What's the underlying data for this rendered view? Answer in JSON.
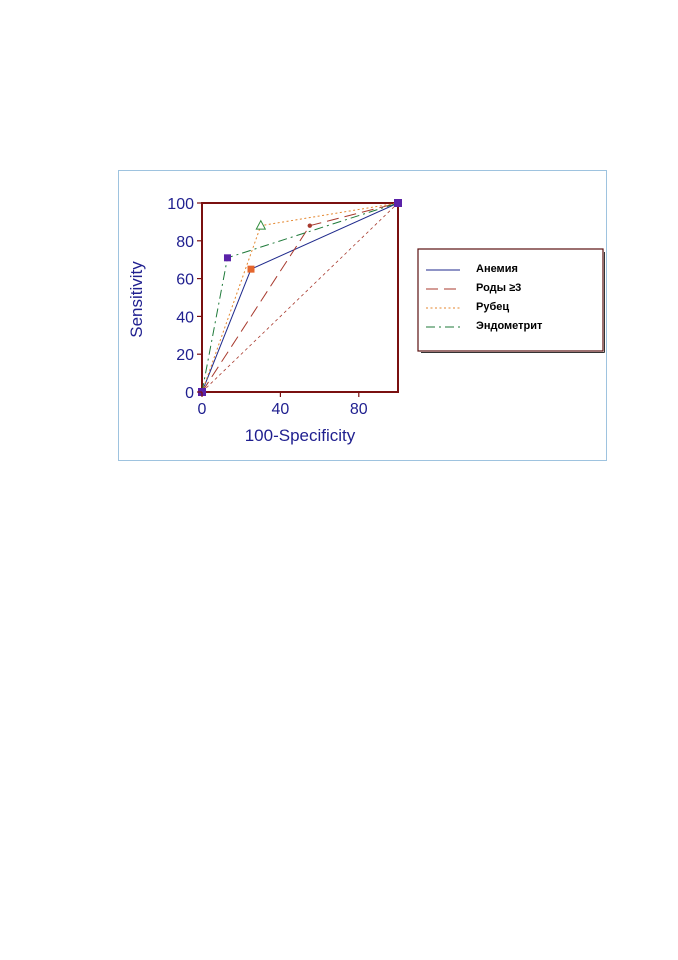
{
  "chart_data": {
    "type": "line",
    "xlabel": "100-Specificity",
    "ylabel": "Sensitivity",
    "xlim": [
      0,
      100
    ],
    "ylim": [
      0,
      100
    ],
    "xticks": [
      0,
      40,
      80
    ],
    "yticks": [
      0,
      20,
      40,
      60,
      80,
      100
    ],
    "grid": false,
    "legend_position": "right",
    "diagonal_reference": true,
    "series": [
      {
        "name": "Анемия",
        "color": "#1f2a8c",
        "dash": "solid",
        "marker": "circle-small",
        "points": [
          [
            0,
            0
          ],
          [
            25,
            65
          ],
          [
            100,
            100
          ]
        ]
      },
      {
        "name": "Роды ≥3",
        "color": "#a83a2e",
        "dash": "long-dash",
        "marker": "circle-small",
        "points": [
          [
            0,
            0
          ],
          [
            55,
            88
          ],
          [
            100,
            100
          ]
        ]
      },
      {
        "name": "Рубец",
        "color": "#e4862d",
        "dash": "dotted",
        "marker": "triangle-open",
        "points": [
          [
            0,
            0
          ],
          [
            30,
            88
          ],
          [
            100,
            100
          ]
        ]
      },
      {
        "name": "Эндометрит",
        "color": "#1f7a3a",
        "dash": "dash-dot",
        "marker": "square",
        "points": [
          [
            0,
            0
          ],
          [
            13,
            71
          ],
          [
            100,
            100
          ]
        ]
      }
    ]
  }
}
